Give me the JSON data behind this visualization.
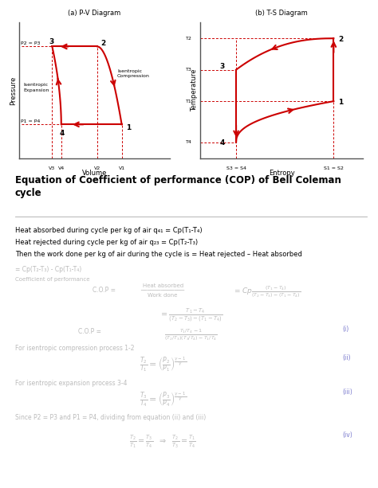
{
  "bg_color": "#ffffff",
  "fig_width": 4.74,
  "fig_height": 6.13,
  "dpi": 100,
  "pv": {
    "title": "(a) P-V Diagram",
    "xlabel": "Volume",
    "ylabel": "Pressure",
    "points": {
      "1": [
        0.68,
        0.25
      ],
      "2": [
        0.52,
        0.82
      ],
      "3": [
        0.22,
        0.82
      ],
      "4": [
        0.28,
        0.25
      ]
    },
    "curve_color": "#cc0000",
    "dash_color": "#cc0000",
    "label_isentropic_expansion": "Isentropic\nExpansion",
    "label_isentropic_compression": "Isentropic\nCompression"
  },
  "ts": {
    "title": "(b) T-S Diagram",
    "xlabel": "Entropy",
    "ylabel": "Temperature",
    "points": {
      "1": [
        0.82,
        0.42
      ],
      "2": [
        0.82,
        0.88
      ],
      "3": [
        0.22,
        0.65
      ],
      "4": [
        0.22,
        0.12
      ]
    },
    "curve_color": "#cc0000",
    "dash_color": "#cc0000"
  },
  "title_text": "Equation of Coefficient of performance (COP) of Bell Coleman\ncycle",
  "line1": "Heat absorbed during cycle per kg of air q₄₁ = Cp(T₁-T₄)",
  "line2": "Heat rejected during cycle per kg of air q₂₃ = Cp(T₂-T₃)",
  "line3": "Then the work done per kg of air during the cycle is = Heat rejected – Heat absorbed",
  "text_color": "#000000",
  "gray_color": "#999999",
  "light_gray": "#bbbbbb",
  "blue_color": "#7777cc"
}
